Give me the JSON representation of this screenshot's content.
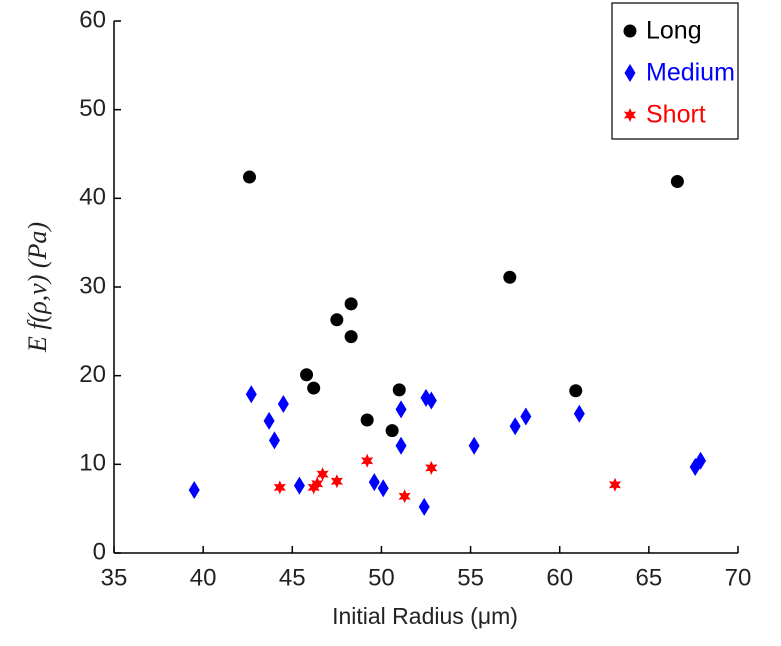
{
  "chart_data": {
    "type": "scatter",
    "xlabel": "Initial Radius (μm)",
    "ylabel": "E f(ρ,v)  (Pa)",
    "xlim": [
      35,
      70
    ],
    "xticks": [
      35,
      40,
      45,
      50,
      55,
      60,
      65,
      70
    ],
    "ylim": [
      0,
      60
    ],
    "yticks": [
      0,
      10,
      20,
      30,
      40,
      50,
      60
    ],
    "grid": false,
    "legend_position": "upper right",
    "series": [
      {
        "name": "Long",
        "color": "#000000",
        "marker": "circle",
        "x": [
          42.6,
          45.8,
          46.2,
          47.5,
          48.3,
          48.3,
          49.2,
          51.0,
          50.6,
          57.2,
          60.9,
          66.6
        ],
        "values": [
          42.4,
          20.1,
          18.6,
          26.3,
          28.1,
          24.4,
          15.0,
          18.4,
          13.8,
          31.1,
          18.3,
          41.9
        ]
      },
      {
        "name": "Medium",
        "color": "#0000ff",
        "marker": "diamond",
        "x": [
          39.5,
          42.7,
          43.7,
          44.0,
          44.5,
          45.4,
          49.6,
          50.1,
          51.1,
          51.1,
          52.4,
          52.5,
          52.8,
          55.2,
          57.5,
          58.1,
          61.1,
          67.6,
          67.9
        ],
        "values": [
          7.1,
          17.9,
          14.9,
          12.7,
          16.8,
          7.6,
          8.0,
          7.3,
          16.2,
          12.1,
          5.2,
          17.5,
          17.2,
          12.1,
          14.3,
          15.4,
          15.7,
          9.7,
          10.4
        ]
      },
      {
        "name": "Short",
        "color": "#ff0000",
        "marker": "star",
        "x": [
          44.3,
          46.2,
          46.4,
          46.7,
          47.5,
          49.2,
          51.3,
          52.8,
          63.1
        ],
        "values": [
          7.4,
          7.4,
          7.8,
          8.9,
          8.1,
          10.4,
          6.4,
          9.6,
          7.7
        ]
      }
    ]
  }
}
